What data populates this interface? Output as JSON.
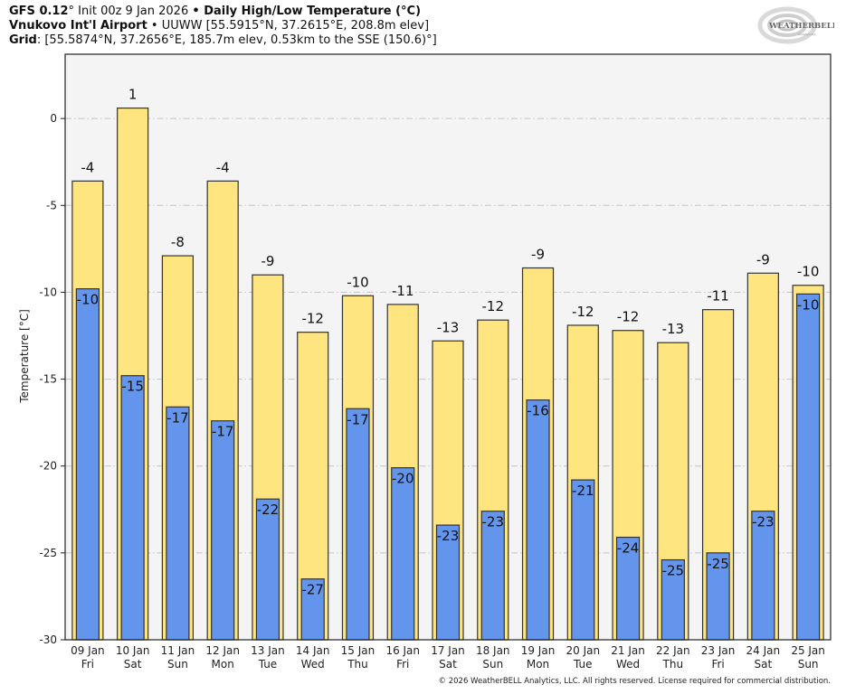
{
  "header": {
    "line1": {
      "model": "GFS 0.12",
      "deg": "°",
      "init": " Init 00z 9 Jan 2026 ",
      "bullet": "•",
      "product": " Daily High/Low Temperature (°C)"
    },
    "line2": {
      "station": "Vnukovo Int'l Airport",
      "bullet": " • ",
      "details": "UUWW [55.5915°N, 37.2615°E, 208.8m elev]"
    },
    "line3": {
      "label": "Grid",
      "details": ": [55.5874°N, 37.2656°E, 185.7m elev, 0.53km to the SSE (150.6)°]"
    }
  },
  "logo": {
    "text_main": "WEATHERBELL",
    "text_sub": "Analytics LLC",
    "icon": "swirl-logo-icon"
  },
  "footer": "© 2026 WeatherBELL Analytics, LLC. All rights reserved. License required for commercial distribution.",
  "colors": {
    "high_fill": "#ffe57f",
    "low_fill": "#6495ed",
    "bar_stroke": "#333333",
    "plot_bg": "#f4f4f4",
    "grid": "#c4c4c4"
  },
  "chart_data": {
    "type": "bar",
    "title": "Daily High/Low Temperature (°C)",
    "xlabel": "",
    "ylabel": "Temperature [°C]",
    "ylim": [
      -30,
      3.7
    ],
    "yticks": [
      0,
      -5,
      -10,
      -15,
      -20,
      -25,
      -30
    ],
    "ytick_labels": [
      "0",
      "-5",
      "-10",
      "-15",
      "-20",
      "-25",
      "-30"
    ],
    "grid": true,
    "legend": "none",
    "categories": [
      [
        "09 Jan",
        "Fri"
      ],
      [
        "10 Jan",
        "Sat"
      ],
      [
        "11 Jan",
        "Sun"
      ],
      [
        "12 Jan",
        "Mon"
      ],
      [
        "13 Jan",
        "Tue"
      ],
      [
        "14 Jan",
        "Wed"
      ],
      [
        "15 Jan",
        "Thu"
      ],
      [
        "16 Jan",
        "Fri"
      ],
      [
        "17 Jan",
        "Sat"
      ],
      [
        "18 Jan",
        "Sun"
      ],
      [
        "19 Jan",
        "Mon"
      ],
      [
        "20 Jan",
        "Tue"
      ],
      [
        "21 Jan",
        "Wed"
      ],
      [
        "22 Jan",
        "Thu"
      ],
      [
        "23 Jan",
        "Fri"
      ],
      [
        "24 Jan",
        "Sat"
      ],
      [
        "25 Jan",
        "Sun"
      ]
    ],
    "series": [
      {
        "name": "High",
        "values": [
          -3.6,
          0.6,
          -7.9,
          -3.6,
          -9.0,
          -12.3,
          -10.2,
          -10.7,
          -12.8,
          -11.6,
          -8.6,
          -11.9,
          -12.2,
          -12.9,
          -11.0,
          -8.9,
          -9.6
        ],
        "labels": [
          "-4",
          "1",
          "-8",
          "-4",
          "-9",
          "-12",
          "-10",
          "-11",
          "-13",
          "-12",
          "-9",
          "-12",
          "-12",
          "-13",
          "-11",
          "-9",
          "-10"
        ]
      },
      {
        "name": "Low",
        "values": [
          -9.8,
          -14.8,
          -16.6,
          -17.4,
          -21.9,
          -26.5,
          -16.7,
          -20.1,
          -23.4,
          -22.6,
          -16.2,
          -20.8,
          -24.1,
          -25.4,
          -25.0,
          -22.6,
          -10.1
        ],
        "labels": [
          "-10",
          "-15",
          "-17",
          "-17",
          "-22",
          "-27",
          "-17",
          "-20",
          "-23",
          "-23",
          "-16",
          "-21",
          "-24",
          "-25",
          "-25",
          "-23",
          "-10"
        ]
      }
    ]
  }
}
